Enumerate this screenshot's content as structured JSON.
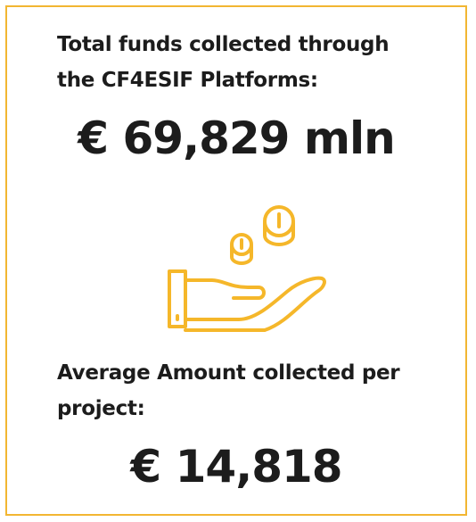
{
  "card": {
    "total": {
      "label_lines": [
        "Total funds collected through",
        "the CF4ESIF Platforms:"
      ],
      "value": "€ 69,829 mln"
    },
    "average": {
      "label_lines": [
        "Average Amount collected per",
        "project:"
      ],
      "value": "€ 14,818"
    }
  }
}
